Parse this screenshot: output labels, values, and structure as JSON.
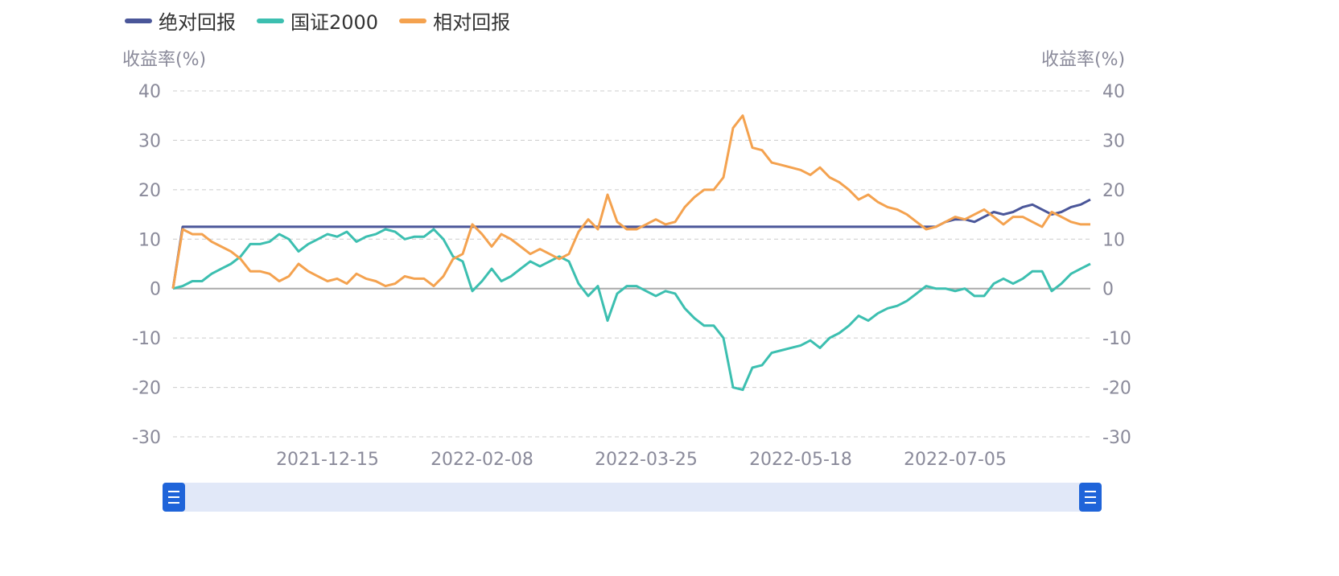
{
  "chart_data": {
    "type": "line",
    "legend": [
      "绝对回报",
      "国证2000",
      "相对回报"
    ],
    "legend_position": "top-left",
    "y_axis_title_left": "收益率(%)",
    "y_axis_title_right": "收益率(%)",
    "ylim": [
      -30,
      40
    ],
    "yticks": [
      40,
      30,
      20,
      10,
      0,
      -10,
      -20,
      -30
    ],
    "grid": true,
    "x_tick_labels": [
      {
        "index": 16,
        "label": "2021-12-15"
      },
      {
        "index": 32,
        "label": "2022-02-08"
      },
      {
        "index": 49,
        "label": "2022-03-25"
      },
      {
        "index": 65,
        "label": "2022-05-18"
      },
      {
        "index": 81,
        "label": "2022-07-05"
      }
    ],
    "point_count": 96,
    "series": [
      {
        "name": "绝对回报",
        "color": "#4a5699",
        "values": [
          0,
          12.5,
          12.5,
          12.5,
          12.5,
          12.5,
          12.5,
          12.5,
          12.5,
          12.5,
          12.5,
          12.5,
          12.5,
          12.5,
          12.5,
          12.5,
          12.5,
          12.5,
          12.5,
          12.5,
          12.5,
          12.5,
          12.5,
          12.5,
          12.5,
          12.5,
          12.5,
          12.5,
          12.5,
          12.5,
          12.5,
          12.5,
          12.5,
          12.5,
          12.5,
          12.5,
          12.5,
          12.5,
          12.5,
          12.5,
          12.5,
          12.5,
          12.5,
          12.5,
          12.5,
          12.5,
          12.5,
          12.5,
          12.5,
          12.5,
          12.5,
          12.5,
          12.5,
          12.5,
          12.5,
          12.5,
          12.5,
          12.5,
          12.5,
          12.5,
          12.5,
          12.5,
          12.5,
          12.5,
          12.5,
          12.5,
          12.5,
          12.5,
          12.5,
          12.5,
          12.5,
          12.5,
          12.5,
          12.5,
          12.5,
          12.5,
          12.5,
          12.5,
          12.5,
          12.5,
          13.5,
          14,
          14,
          13.5,
          14.5,
          15.5,
          15,
          15.5,
          16.5,
          17,
          16,
          15,
          15.5,
          16.5,
          17,
          18
        ]
      },
      {
        "name": "国证2000",
        "color": "#3cbfb0",
        "values": [
          0,
          0.5,
          1.5,
          1.5,
          3,
          4,
          5,
          6.5,
          9,
          9,
          9.5,
          11,
          10,
          7.5,
          9,
          10,
          11,
          10.5,
          11.5,
          9.5,
          10.5,
          11,
          12,
          11.5,
          10,
          10.5,
          10.5,
          12,
          10,
          6.5,
          5.5,
          -0.5,
          1.5,
          4,
          1.5,
          2.5,
          4,
          5.5,
          4.5,
          5.5,
          6.5,
          5.5,
          1,
          -1.5,
          0.5,
          -6.5,
          -1,
          0.5,
          0.5,
          -0.5,
          -1.5,
          -0.5,
          -1,
          -4,
          -6,
          -7.5,
          -7.5,
          -10,
          -20,
          -20.5,
          -16,
          -15.5,
          -13,
          -12.5,
          -12,
          -11.5,
          -10.5,
          -12,
          -10,
          -9,
          -7.5,
          -5.5,
          -6.5,
          -5,
          -4,
          -3.5,
          -2.5,
          -1,
          0.5,
          0,
          0,
          -0.5,
          0,
          -1.5,
          -1.5,
          1,
          2,
          1,
          2,
          3.5,
          3.5,
          -0.5,
          1,
          3,
          4,
          5
        ]
      },
      {
        "name": "相对回报",
        "color": "#f4a24f",
        "values": [
          0,
          12,
          11,
          11,
          9.5,
          8.5,
          7.5,
          6,
          3.5,
          3.5,
          3,
          1.5,
          2.5,
          5,
          3.5,
          2.5,
          1.5,
          2,
          1,
          3,
          2,
          1.5,
          0.5,
          1,
          2.5,
          2,
          2,
          0.5,
          2.5,
          6,
          7,
          13,
          11,
          8.5,
          11,
          10,
          8.5,
          7,
          8,
          7,
          6,
          7,
          11.5,
          14,
          12,
          19,
          13.5,
          12,
          12,
          13,
          14,
          13,
          13.5,
          16.5,
          18.5,
          20,
          20,
          22.5,
          32.5,
          35,
          28.5,
          28,
          25.5,
          25,
          24.5,
          24,
          23,
          24.5,
          22.5,
          21.5,
          20,
          18,
          19,
          17.5,
          16.5,
          16,
          15,
          13.5,
          12,
          12.5,
          13.5,
          14.5,
          14,
          15,
          16,
          14.5,
          13,
          14.5,
          14.5,
          13.5,
          12.5,
          15.5,
          14.5,
          13.5,
          13,
          13
        ]
      }
    ]
  },
  "data_zoom": {
    "start_percent": 0,
    "end_percent": 100
  }
}
